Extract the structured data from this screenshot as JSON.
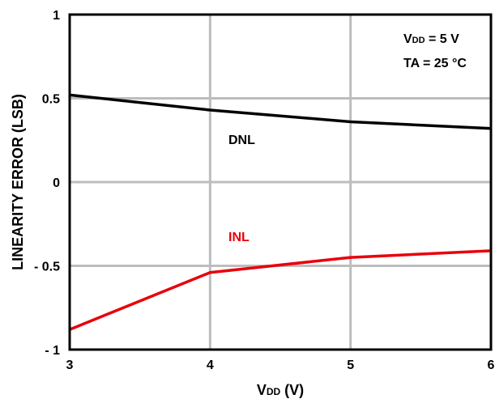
{
  "chart_data": {
    "type": "line",
    "xlabel": {
      "main": "V",
      "sub": "DD",
      "suffix": " (V)"
    },
    "ylabel": "LINEARITY  ERROR (LSB)",
    "xlim": [
      3,
      6
    ],
    "ylim": [
      -1,
      1
    ],
    "x_ticks": [
      3,
      4,
      5,
      6
    ],
    "x_tick_labels": [
      "3",
      "4",
      "5",
      "6"
    ],
    "y_ticks": [
      -1,
      -0.5,
      0,
      0.5,
      1
    ],
    "y_tick_labels": [
      "- 1",
      "- 0.5",
      "0",
      "0.5",
      "1"
    ],
    "grid": true,
    "annotations": {
      "vdd": {
        "main": "V",
        "sub": "DD",
        "suffix": " = 5 V"
      },
      "ta": "TA = 25 °C"
    },
    "series": [
      {
        "name": "DNL",
        "color": "#000000",
        "x": [
          3,
          4,
          5,
          6
        ],
        "y": [
          0.52,
          0.43,
          0.36,
          0.32
        ]
      },
      {
        "name": "INL",
        "color": "#e8000b",
        "x": [
          3,
          4,
          5,
          6
        ],
        "y": [
          -0.88,
          -0.54,
          -0.45,
          -0.41
        ]
      }
    ]
  }
}
